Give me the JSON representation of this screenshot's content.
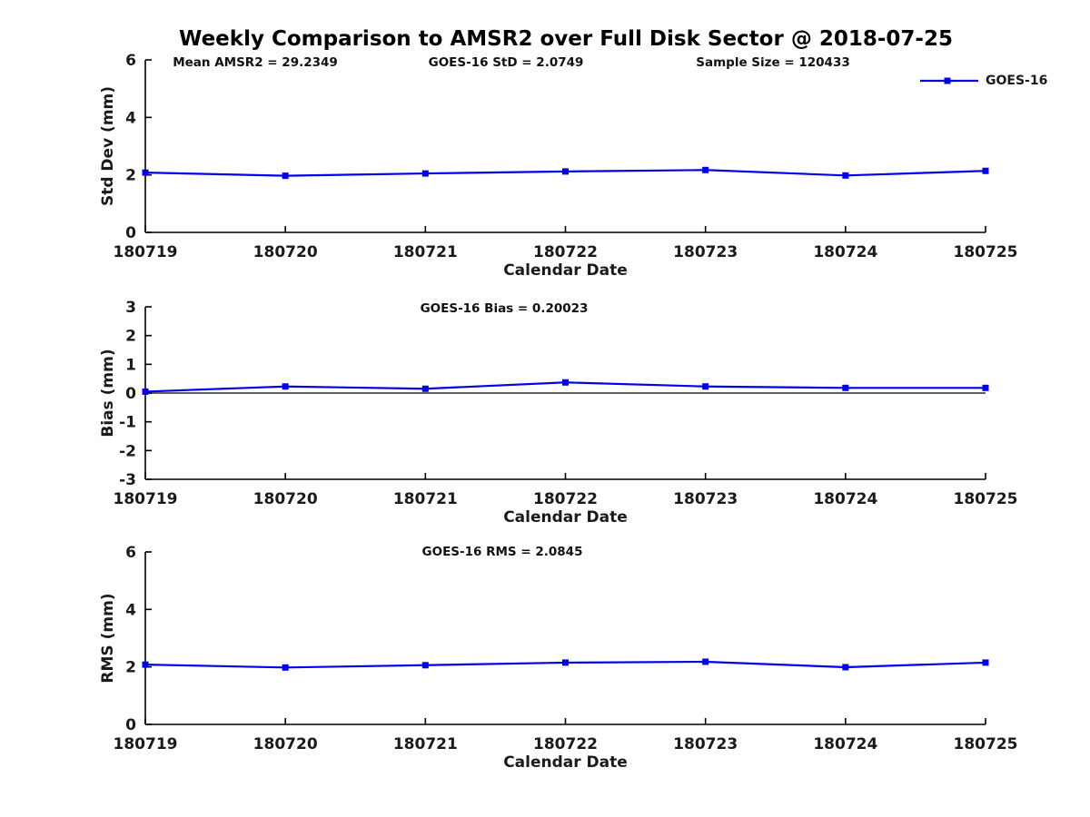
{
  "figure": {
    "title": "Weekly Comparison to AMSR2 over Full Disk Sector @ 2018-07-25",
    "background": "#ffffff",
    "legend": {
      "label": "GOES-16",
      "color": "#0000ee",
      "marker": "square",
      "position": "top-right"
    }
  },
  "chart_data": [
    {
      "type": "line",
      "ylabel": "Std Dev (mm)",
      "xlabel": "Calendar Date",
      "categories": [
        "180719",
        "180720",
        "180721",
        "180722",
        "180723",
        "180724",
        "180725"
      ],
      "ylim": [
        0,
        6
      ],
      "yticks": [
        0,
        2,
        4,
        6
      ],
      "grid": false,
      "zero_line": false,
      "annotations": [
        "Mean AMSR2 = 29.2349",
        "GOES-16 StD = 2.0749",
        "Sample Size = 120433"
      ],
      "series": [
        {
          "name": "GOES-16",
          "color": "#0000ee",
          "marker": "square",
          "values": [
            2.08,
            1.97,
            2.05,
            2.12,
            2.17,
            1.98,
            2.14
          ]
        }
      ]
    },
    {
      "type": "line",
      "ylabel": "Bias (mm)",
      "xlabel": "Calendar Date",
      "categories": [
        "180719",
        "180720",
        "180721",
        "180722",
        "180723",
        "180724",
        "180725"
      ],
      "ylim": [
        -3,
        3
      ],
      "yticks": [
        -3,
        -2,
        -1,
        0,
        1,
        2,
        3
      ],
      "grid": false,
      "zero_line": true,
      "annotations": [
        "GOES-16 Bias  = 0.20023"
      ],
      "series": [
        {
          "name": "GOES-16",
          "color": "#0000ee",
          "marker": "square",
          "values": [
            0.05,
            0.23,
            0.15,
            0.37,
            0.23,
            0.18,
            0.18
          ]
        }
      ]
    },
    {
      "type": "line",
      "ylabel": "RMS (mm)",
      "xlabel": "Calendar Date",
      "categories": [
        "180719",
        "180720",
        "180721",
        "180722",
        "180723",
        "180724",
        "180725"
      ],
      "ylim": [
        0,
        6
      ],
      "yticks": [
        0,
        2,
        4,
        6
      ],
      "grid": false,
      "zero_line": false,
      "annotations": [
        "GOES-16 RMS = 2.0845"
      ],
      "series": [
        {
          "name": "GOES-16",
          "color": "#0000ee",
          "marker": "square",
          "values": [
            2.08,
            1.98,
            2.06,
            2.15,
            2.18,
            1.99,
            2.15
          ]
        }
      ]
    }
  ]
}
